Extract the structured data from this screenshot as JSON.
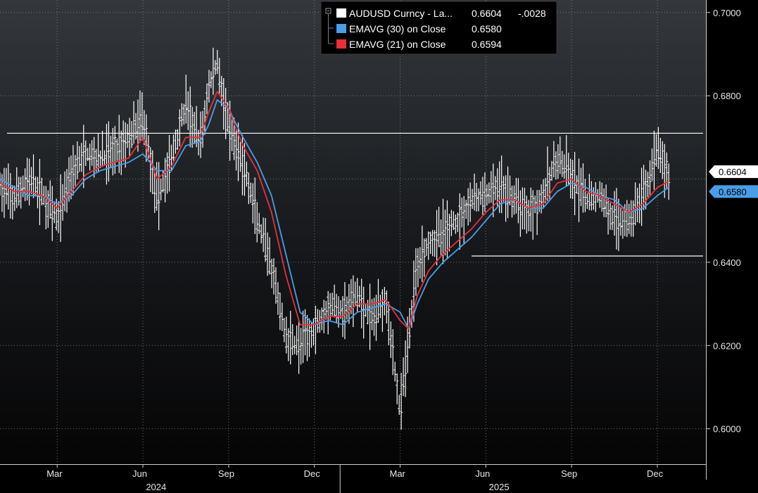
{
  "chart_data": {
    "type": "line",
    "title": "",
    "legend": {
      "placement": "top-center",
      "entries": [
        {
          "label": "AUDUSD Curncy - La...",
          "value": "0.6604",
          "change": "-.0028",
          "color": "#ffffff"
        },
        {
          "label": "EMAVG (30)  on Close",
          "value": "0.6580",
          "color": "#4a9ee8"
        },
        {
          "label": "EMAVG (21)  on Close",
          "value": "0.6594",
          "color": "#e8303a"
        }
      ]
    },
    "y_axis": {
      "side": "right",
      "ylim": [
        0.5915,
        0.703
      ],
      "ticks": [
        "0.7000",
        "0.6800",
        "0.6400",
        "0.6200",
        "0.6000"
      ],
      "tick_values": [
        0.7,
        0.68,
        0.64,
        0.62,
        0.6
      ],
      "gridlines": [
        0.7,
        0.68,
        0.66,
        0.64,
        0.62,
        0.6
      ]
    },
    "x_axis": {
      "months": [
        "Mar",
        "Jun",
        "Sep",
        "Dec",
        "Mar",
        "Jun",
        "Sep",
        "Dec"
      ],
      "month_index": [
        2,
        5,
        8,
        11,
        14,
        17,
        20,
        23
      ],
      "years": [
        "2024",
        "2025"
      ],
      "year_index": [
        5.5,
        17.5
      ],
      "xlim": [
        0,
        24.7
      ]
    },
    "reference_lines": [
      0.671,
      0.6415
    ],
    "value_tags": [
      {
        "text": "0.6604",
        "value": 0.6604,
        "bg": "#ffffff",
        "fg": "#000000"
      },
      {
        "text": "0.6580",
        "value": 0.658,
        "bg": "#4a9ee8",
        "fg": "#000000"
      }
    ],
    "series": [
      {
        "name": "AUDUSD Curncy",
        "color": "#ffffff",
        "style": "ohlc-bars",
        "x": [
          0.0,
          0.5,
          1.0,
          1.5,
          2.0,
          2.5,
          3.0,
          3.5,
          4.0,
          4.5,
          5.0,
          5.5,
          6.0,
          6.5,
          7.0,
          7.3,
          7.6,
          8.0,
          8.2,
          8.5,
          9.0,
          9.5,
          10.0,
          10.5,
          11.0,
          11.5,
          12.0,
          12.5,
          13.0,
          13.5,
          14.0,
          14.3,
          14.6,
          15.0,
          15.5,
          16.0,
          16.5,
          17.0,
          17.5,
          18.0,
          18.5,
          19.0,
          19.5,
          20.0,
          20.5,
          21.0,
          21.5,
          22.0,
          22.5,
          23.0,
          23.4
        ],
        "values": [
          0.658,
          0.655,
          0.66,
          0.656,
          0.65,
          0.662,
          0.666,
          0.665,
          0.667,
          0.67,
          0.675,
          0.655,
          0.665,
          0.678,
          0.668,
          0.682,
          0.688,
          0.672,
          0.668,
          0.664,
          0.65,
          0.638,
          0.622,
          0.62,
          0.624,
          0.63,
          0.628,
          0.632,
          0.626,
          0.632,
          0.604,
          0.622,
          0.64,
          0.645,
          0.647,
          0.65,
          0.655,
          0.656,
          0.658,
          0.655,
          0.652,
          0.656,
          0.665,
          0.66,
          0.655,
          0.656,
          0.65,
          0.65,
          0.656,
          0.667,
          0.6604
        ]
      },
      {
        "name": "EMAVG (30)",
        "color": "#4a9ee8",
        "x": [
          0.0,
          0.5,
          1.0,
          1.5,
          2.0,
          2.5,
          3.0,
          3.5,
          4.0,
          4.5,
          5.0,
          5.5,
          6.0,
          6.5,
          7.0,
          7.3,
          7.6,
          8.0,
          8.2,
          8.5,
          9.0,
          9.5,
          10.0,
          10.5,
          11.0,
          11.5,
          12.0,
          12.5,
          13.0,
          13.5,
          14.0,
          14.3,
          14.6,
          15.0,
          15.5,
          16.0,
          16.5,
          17.0,
          17.5,
          18.0,
          18.5,
          19.0,
          19.5,
          20.0,
          20.5,
          21.0,
          21.5,
          22.0,
          22.5,
          23.0,
          23.4
        ],
        "values": [
          0.66,
          0.658,
          0.656,
          0.656,
          0.654,
          0.656,
          0.66,
          0.662,
          0.663,
          0.664,
          0.666,
          0.662,
          0.662,
          0.668,
          0.669,
          0.673,
          0.679,
          0.677,
          0.674,
          0.67,
          0.664,
          0.656,
          0.642,
          0.628,
          0.625,
          0.626,
          0.625,
          0.628,
          0.629,
          0.63,
          0.628,
          0.624,
          0.63,
          0.636,
          0.64,
          0.643,
          0.646,
          0.65,
          0.654,
          0.655,
          0.653,
          0.653,
          0.657,
          0.659,
          0.658,
          0.656,
          0.655,
          0.652,
          0.653,
          0.656,
          0.658
        ]
      },
      {
        "name": "EMAVG (21)",
        "color": "#e8303a",
        "x": [
          0.0,
          0.5,
          1.0,
          1.5,
          2.0,
          2.5,
          3.0,
          3.5,
          4.0,
          4.5,
          5.0,
          5.5,
          6.0,
          6.5,
          7.0,
          7.3,
          7.6,
          8.0,
          8.2,
          8.5,
          9.0,
          9.5,
          10.0,
          10.5,
          11.0,
          11.5,
          12.0,
          12.5,
          13.0,
          13.5,
          14.0,
          14.3,
          14.6,
          15.0,
          15.5,
          16.0,
          16.5,
          17.0,
          17.5,
          18.0,
          18.5,
          19.0,
          19.5,
          20.0,
          20.5,
          21.0,
          21.5,
          22.0,
          22.5,
          23.0,
          23.4
        ],
        "values": [
          0.659,
          0.657,
          0.657,
          0.656,
          0.653,
          0.657,
          0.661,
          0.663,
          0.664,
          0.665,
          0.67,
          0.66,
          0.663,
          0.67,
          0.67,
          0.676,
          0.681,
          0.677,
          0.673,
          0.668,
          0.662,
          0.652,
          0.637,
          0.625,
          0.625,
          0.627,
          0.627,
          0.63,
          0.63,
          0.631,
          0.626,
          0.624,
          0.632,
          0.638,
          0.642,
          0.645,
          0.648,
          0.652,
          0.655,
          0.655,
          0.653,
          0.654,
          0.659,
          0.66,
          0.657,
          0.656,
          0.654,
          0.652,
          0.654,
          0.658,
          0.6594
        ]
      }
    ]
  }
}
